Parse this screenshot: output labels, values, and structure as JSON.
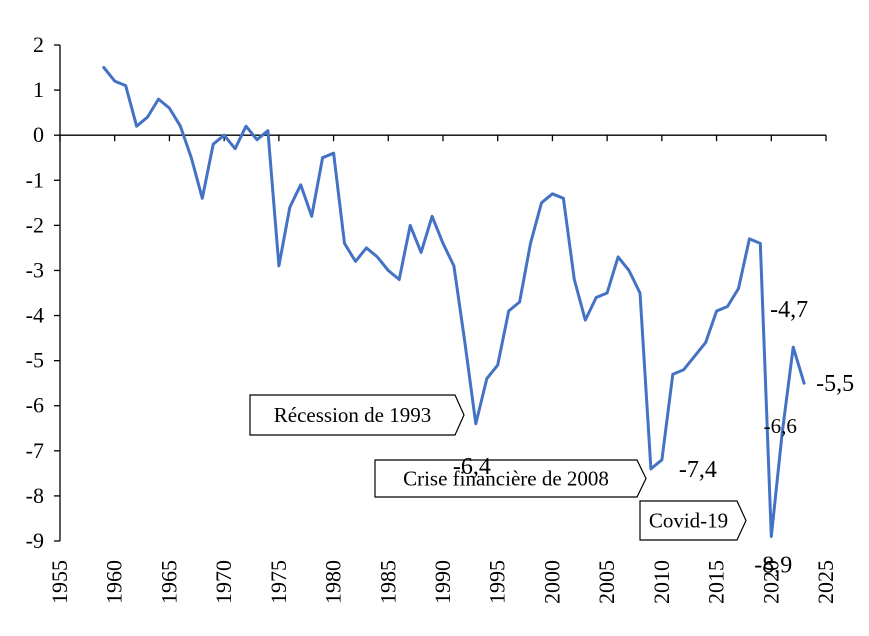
{
  "chart_data": {
    "type": "line",
    "title": "",
    "xlabel": "",
    "ylabel": "",
    "xlim": [
      1955,
      2025
    ],
    "ylim": [
      -9,
      2
    ],
    "x_ticks": [
      "1955",
      "1960",
      "1965",
      "1970",
      "1975",
      "1980",
      "1985",
      "1990",
      "1995",
      "2000",
      "2005",
      "2010",
      "2015",
      "2020",
      "2025"
    ],
    "y_ticks": [
      "2",
      "1",
      "0",
      "-1",
      "-2",
      "-3",
      "-4",
      "-5",
      "-6",
      "-7",
      "-8",
      "-9"
    ],
    "grid": false,
    "legend": "none",
    "series_color": "#4472C4",
    "series": [
      {
        "x": [
          1959,
          1960,
          1961,
          1962,
          1963,
          1964,
          1965,
          1966,
          1967,
          1968,
          1969,
          1970,
          1971,
          1972,
          1973,
          1974,
          1975,
          1976,
          1977,
          1978,
          1979,
          1980,
          1981,
          1982,
          1983,
          1984,
          1985,
          1986,
          1987,
          1988,
          1989,
          1990,
          1991,
          1992,
          1993,
          1994,
          1995,
          1996,
          1997,
          1998,
          1999,
          2000,
          2001,
          2002,
          2003,
          2004,
          2005,
          2006,
          2007,
          2008,
          2009,
          2010,
          2011,
          2012,
          2013,
          2014,
          2015,
          2016,
          2017,
          2018,
          2019,
          2020,
          2021,
          2022,
          2023
        ],
        "values": [
          1.5,
          1.2,
          1.1,
          0.2,
          0.4,
          0.8,
          0.6,
          0.2,
          -0.5,
          -1.4,
          -0.2,
          0.0,
          -0.3,
          0.2,
          -0.1,
          0.1,
          -2.9,
          -1.6,
          -1.1,
          -1.8,
          -0.5,
          -0.4,
          -2.4,
          -2.8,
          -2.5,
          -2.7,
          -3.0,
          -3.2,
          -2.0,
          -2.6,
          -1.8,
          -2.4,
          -2.9,
          -4.6,
          -6.4,
          -5.4,
          -5.1,
          -3.9,
          -3.7,
          -2.4,
          -1.5,
          -1.3,
          -1.4,
          -3.2,
          -4.1,
          -3.6,
          -3.5,
          -2.7,
          -3.0,
          -3.5,
          -7.4,
          -7.2,
          -5.3,
          -5.2,
          -4.9,
          -4.6,
          -3.9,
          -3.8,
          -3.4,
          -2.3,
          -2.4,
          -8.9,
          -6.6,
          -4.7,
          -5.5
        ]
      }
    ],
    "data_labels": [
      {
        "x": 1993,
        "y": -6.4,
        "text": "-6,4"
      },
      {
        "x": 2009,
        "y": -7.4,
        "text": "-7,4"
      },
      {
        "x": 2020,
        "y": -8.9,
        "text": "-8,9"
      },
      {
        "x": 2021,
        "y": -6.6,
        "text": "-6,6"
      },
      {
        "x": 2022,
        "y": -4.7,
        "text": "-4,7"
      },
      {
        "x": 2023,
        "y": -5.5,
        "text": "-5,5"
      }
    ],
    "annotations": [
      {
        "text": "Récession de 1993",
        "x": 1993
      },
      {
        "text": "Crise financière de 2008",
        "x": 2009
      },
      {
        "text": "Covid-19",
        "x": 2020
      }
    ]
  }
}
